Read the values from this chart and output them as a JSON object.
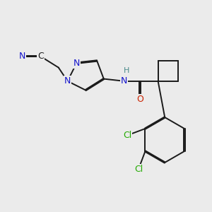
{
  "background_color": "#ebebeb",
  "figsize": [
    3.0,
    3.0
  ],
  "dpi": 100,
  "colors": {
    "bond": "#1a1a1a",
    "N": "#1414cc",
    "O": "#cc2200",
    "Cl": "#22aa00",
    "C": "#1a1a1a",
    "H": "#4a8a8a"
  },
  "lw": 1.4
}
